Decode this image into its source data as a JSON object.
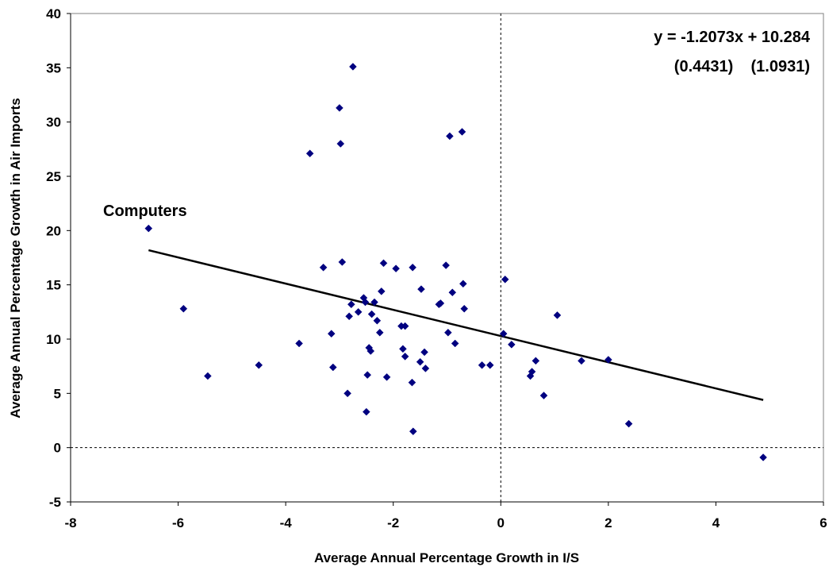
{
  "chart_data": {
    "type": "scatter",
    "xlabel": "Average Annual Percentage Growth in I/S",
    "ylabel": "Average Annual Percentage Growth in Air Imports",
    "xlim": [
      -8,
      6
    ],
    "ylim": [
      -5,
      40
    ],
    "x_ticks": [
      "-8",
      "-6",
      "-4",
      "-2",
      "0",
      "2",
      "4",
      "6"
    ],
    "y_ticks": [
      "-5",
      "0",
      "5",
      "10",
      "15",
      "20",
      "25",
      "30",
      "35",
      "40"
    ],
    "grid": false,
    "legend": "none",
    "reference_lines": {
      "x": 0,
      "y": 0,
      "style": "dashed"
    },
    "points": [
      [
        -6.55,
        20.2
      ],
      [
        -5.9,
        12.8
      ],
      [
        -5.45,
        6.6
      ],
      [
        -4.5,
        7.6
      ],
      [
        -3.75,
        9.6
      ],
      [
        -3.55,
        27.1
      ],
      [
        -3.3,
        16.6
      ],
      [
        -3.15,
        10.5
      ],
      [
        -3.12,
        7.4
      ],
      [
        -3.0,
        31.3
      ],
      [
        -2.98,
        28.0
      ],
      [
        -2.95,
        17.1
      ],
      [
        -2.85,
        5.0
      ],
      [
        -2.82,
        12.1
      ],
      [
        -2.78,
        13.2
      ],
      [
        -2.75,
        35.1
      ],
      [
        -2.65,
        12.5
      ],
      [
        -2.55,
        13.8
      ],
      [
        -2.52,
        13.4
      ],
      [
        -2.5,
        3.3
      ],
      [
        -2.48,
        6.7
      ],
      [
        -2.45,
        9.2
      ],
      [
        -2.42,
        8.9
      ],
      [
        -2.4,
        12.3
      ],
      [
        -2.35,
        13.4
      ],
      [
        -2.3,
        11.7
      ],
      [
        -2.25,
        10.6
      ],
      [
        -2.22,
        14.4
      ],
      [
        -2.18,
        17.0
      ],
      [
        -2.12,
        6.5
      ],
      [
        -1.95,
        16.5
      ],
      [
        -1.85,
        11.2
      ],
      [
        -1.82,
        9.1
      ],
      [
        -1.78,
        11.2
      ],
      [
        -1.78,
        8.4
      ],
      [
        -1.65,
        6.0
      ],
      [
        -1.64,
        16.6
      ],
      [
        -1.63,
        1.5
      ],
      [
        -1.5,
        7.9
      ],
      [
        -1.48,
        14.6
      ],
      [
        -1.42,
        8.8
      ],
      [
        -1.4,
        7.3
      ],
      [
        -1.15,
        13.2
      ],
      [
        -1.12,
        13.3
      ],
      [
        -1.02,
        16.8
      ],
      [
        -0.98,
        10.6
      ],
      [
        -0.95,
        28.7
      ],
      [
        -0.9,
        14.3
      ],
      [
        -0.85,
        9.6
      ],
      [
        -0.72,
        29.1
      ],
      [
        -0.7,
        15.1
      ],
      [
        -0.68,
        12.8
      ],
      [
        -0.35,
        7.6
      ],
      [
        -0.2,
        7.6
      ],
      [
        0.05,
        10.5
      ],
      [
        0.08,
        15.5
      ],
      [
        0.2,
        9.5
      ],
      [
        0.55,
        6.6
      ],
      [
        0.58,
        7.0
      ],
      [
        0.65,
        8.0
      ],
      [
        0.8,
        4.8
      ],
      [
        1.05,
        12.2
      ],
      [
        1.5,
        8.0
      ],
      [
        2.0,
        8.1
      ],
      [
        2.38,
        2.2
      ],
      [
        4.88,
        -0.9
      ]
    ],
    "trendline": {
      "slope": -1.2073,
      "intercept": 10.284,
      "x_range": [
        -6.55,
        4.88
      ],
      "equation": "y = -1.2073x + 10.284",
      "std_errors": "(0.4431)    (1.0931)"
    },
    "annotations": [
      {
        "text": "Computers",
        "x": -6.55,
        "y": 20.2
      }
    ],
    "marker_color": "#000080",
    "line_color": "#000000"
  }
}
